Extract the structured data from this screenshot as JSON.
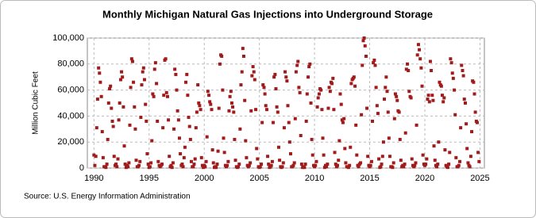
{
  "chart_data": {
    "type": "scatter",
    "title": "Monthly Michigan Natural Gas Injections into Underground Storage",
    "y_label": "Million Cubic Feet",
    "source": "Source: U.S. Energy Information Administration",
    "xlim": [
      1989.4,
      2025.4
    ],
    "xticks": [
      1990,
      1995,
      2000,
      2005,
      2010,
      2015,
      2020,
      2025
    ],
    "ylim": [
      0,
      100000
    ],
    "yticks": [
      0,
      {
        "value": 20000,
        "label": "20,000"
      },
      {
        "value": 40000,
        "label": "40,000"
      },
      {
        "value": 60000,
        "label": "60,000"
      },
      {
        "value": 80000,
        "label": "80,000"
      },
      {
        "value": 100000,
        "label": "100,000"
      }
    ],
    "grid": true,
    "color": "#a01c1c",
    "x": [
      1990,
      1990.08,
      1990.17,
      1990.25,
      1990.33,
      1990.42,
      1990.5,
      1990.58,
      1990.67,
      1990.75,
      1990.83,
      1990.92,
      1991,
      1991.08,
      1991.17,
      1991.25,
      1991.33,
      1991.42,
      1991.5,
      1991.58,
      1991.67,
      1991.75,
      1991.83,
      1991.92,
      1992,
      1992.08,
      1992.17,
      1992.25,
      1992.33,
      1992.42,
      1992.5,
      1992.58,
      1992.67,
      1992.75,
      1992.83,
      1992.92,
      1993,
      1993.08,
      1993.17,
      1993.25,
      1993.33,
      1993.42,
      1993.5,
      1993.58,
      1993.67,
      1993.75,
      1993.83,
      1993.92,
      1994,
      1994.08,
      1994.17,
      1994.25,
      1994.33,
      1994.42,
      1994.5,
      1994.58,
      1994.67,
      1994.75,
      1994.83,
      1994.92,
      1995,
      1995.08,
      1995.17,
      1995.25,
      1995.33,
      1995.42,
      1995.5,
      1995.58,
      1995.67,
      1995.75,
      1995.83,
      1995.92,
      1996,
      1996.08,
      1996.17,
      1996.25,
      1996.33,
      1996.42,
      1996.5,
      1996.58,
      1996.67,
      1996.75,
      1996.83,
      1996.92,
      1997,
      1997.08,
      1997.17,
      1997.25,
      1997.33,
      1997.42,
      1997.5,
      1997.58,
      1997.67,
      1997.75,
      1997.83,
      1997.92,
      1998,
      1998.08,
      1998.17,
      1998.25,
      1998.33,
      1998.42,
      1998.5,
      1998.58,
      1998.67,
      1998.75,
      1998.83,
      1998.92,
      1999,
      1999.08,
      1999.17,
      1999.25,
      1999.33,
      1999.42,
      1999.5,
      1999.58,
      1999.67,
      1999.75,
      1999.83,
      1999.92,
      2000,
      2000.08,
      2000.17,
      2000.25,
      2000.33,
      2000.42,
      2000.5,
      2000.58,
      2000.67,
      2000.75,
      2000.83,
      2000.92,
      2001,
      2001.08,
      2001.17,
      2001.25,
      2001.33,
      2001.42,
      2001.5,
      2001.58,
      2001.67,
      2001.75,
      2001.83,
      2001.92,
      2002,
      2002.08,
      2002.17,
      2002.25,
      2002.33,
      2002.42,
      2002.5,
      2002.58,
      2002.67,
      2002.75,
      2002.83,
      2002.92,
      2003,
      2003.08,
      2003.17,
      2003.25,
      2003.33,
      2003.42,
      2003.5,
      2003.58,
      2003.67,
      2003.75,
      2003.83,
      2003.92,
      2004,
      2004.08,
      2004.17,
      2004.25,
      2004.33,
      2004.42,
      2004.5,
      2004.58,
      2004.67,
      2004.75,
      2004.83,
      2004.92,
      2005,
      2005.08,
      2005.17,
      2005.25,
      2005.33,
      2005.42,
      2005.5,
      2005.58,
      2005.67,
      2005.75,
      2005.83,
      2005.92,
      2006,
      2006.08,
      2006.17,
      2006.25,
      2006.33,
      2006.42,
      2006.5,
      2006.58,
      2006.67,
      2006.75,
      2006.83,
      2006.92,
      2007,
      2007.08,
      2007.17,
      2007.25,
      2007.33,
      2007.42,
      2007.5,
      2007.58,
      2007.67,
      2007.75,
      2007.83,
      2007.92,
      2008,
      2008.08,
      2008.17,
      2008.25,
      2008.33,
      2008.42,
      2008.5,
      2008.58,
      2008.67,
      2008.75,
      2008.83,
      2008.92,
      2009,
      2009.08,
      2009.17,
      2009.25,
      2009.33,
      2009.42,
      2009.5,
      2009.58,
      2009.67,
      2009.75,
      2009.83,
      2009.92,
      2010,
      2010.08,
      2010.17,
      2010.25,
      2010.33,
      2010.42,
      2010.5,
      2010.58,
      2010.67,
      2010.75,
      2010.83,
      2010.92,
      2011,
      2011.08,
      2011.17,
      2011.25,
      2011.33,
      2011.42,
      2011.5,
      2011.58,
      2011.67,
      2011.75,
      2011.83,
      2011.92,
      2012,
      2012.08,
      2012.17,
      2012.25,
      2012.33,
      2012.42,
      2012.5,
      2012.58,
      2012.67,
      2012.75,
      2012.83,
      2012.92,
      2013,
      2013.08,
      2013.17,
      2013.25,
      2013.33,
      2013.42,
      2013.5,
      2013.58,
      2013.67,
      2013.75,
      2013.83,
      2013.92,
      2014,
      2014.08,
      2014.17,
      2014.25,
      2014.33,
      2014.42,
      2014.5,
      2014.58,
      2014.67,
      2014.75,
      2014.83,
      2014.92,
      2015,
      2015.08,
      2015.17,
      2015.25,
      2015.33,
      2015.42,
      2015.5,
      2015.58,
      2015.67,
      2015.75,
      2015.83,
      2015.92,
      2016,
      2016.08,
      2016.17,
      2016.25,
      2016.33,
      2016.42,
      2016.5,
      2016.58,
      2016.67,
      2016.75,
      2016.83,
      2016.92,
      2017,
      2017.08,
      2017.17,
      2017.25,
      2017.33,
      2017.42,
      2017.5,
      2017.58,
      2017.67,
      2017.75,
      2017.83,
      2017.92,
      2018,
      2018.08,
      2018.17,
      2018.25,
      2018.33,
      2018.42,
      2018.5,
      2018.58,
      2018.67,
      2018.75,
      2018.83,
      2018.92,
      2019,
      2019.08,
      2019.17,
      2019.25,
      2019.33,
      2019.42,
      2019.5,
      2019.58,
      2019.67,
      2019.75,
      2019.83,
      2019.92,
      2020,
      2020.08,
      2020.17,
      2020.25,
      2020.33,
      2020.42,
      2020.5,
      2020.58,
      2020.67,
      2020.75,
      2020.83,
      2020.92,
      2021,
      2021.08,
      2021.17,
      2021.25,
      2021.33,
      2021.42,
      2021.5,
      2021.58,
      2021.67,
      2021.75,
      2021.83,
      2021.92,
      2022,
      2022.08,
      2022.17,
      2022.25,
      2022.33,
      2022.42,
      2022.5,
      2022.58,
      2022.67,
      2022.75,
      2022.83,
      2022.92,
      2023,
      2023.08,
      2023.17,
      2023.25,
      2023.33,
      2023.42,
      2023.5,
      2023.58,
      2023.67,
      2023.75,
      2023.83,
      2023.92,
      2024,
      2024.08,
      2024.17,
      2024.25,
      2024.33,
      2024.42,
      2024.5,
      2024.58,
      2024.67,
      2024.75,
      2024.83,
      2024.92
    ],
    "values": [
      10000,
      2000,
      9000,
      31000,
      53000,
      77000,
      73000,
      66000,
      55000,
      28000,
      8000,
      1000,
      1000,
      500,
      3000,
      22000,
      50000,
      61000,
      63000,
      46000,
      36000,
      32000,
      9000,
      2000,
      3000,
      1000,
      7000,
      37000,
      50000,
      68000,
      74000,
      70000,
      47000,
      17000,
      3000,
      500,
      2000,
      1000,
      4000,
      33000,
      62000,
      84000,
      82000,
      66000,
      47000,
      30000,
      6000,
      1000,
      1000,
      2000,
      5000,
      39000,
      64000,
      74000,
      77000,
      68000,
      49000,
      36000,
      11000,
      3000,
      500,
      1000,
      4000,
      21000,
      57000,
      55000,
      76000,
      81000,
      65000,
      36000,
      5000,
      2000,
      1000,
      2000,
      3000,
      31000,
      56000,
      83000,
      84000,
      58000,
      55000,
      37000,
      9000,
      1000,
      2000,
      500,
      4000,
      30000,
      76000,
      72000,
      60000,
      44000,
      37000,
      23000,
      11000,
      2000,
      3000,
      1000,
      8000,
      16000,
      66000,
      72000,
      56000,
      39000,
      32000,
      22000,
      5000,
      1000,
      1000,
      3000,
      7000,
      31000,
      43000,
      64000,
      50000,
      48000,
      45000,
      8000,
      2000,
      500,
      2000,
      1000,
      5000,
      24000,
      59000,
      56000,
      51000,
      49000,
      45000,
      14000,
      4000,
      500,
      1000,
      500,
      3000,
      13000,
      46000,
      80000,
      87000,
      86000,
      60000,
      23000,
      12000,
      2000,
      1000,
      2000,
      5000,
      44000,
      55000,
      59000,
      50000,
      47000,
      43000,
      22000,
      6000,
      1000,
      500,
      1000,
      3000,
      30000,
      64000,
      74000,
      92000,
      86000,
      52000,
      21000,
      8000,
      2000,
      1000,
      2000,
      4000,
      44000,
      71000,
      78000,
      74000,
      68000,
      45000,
      15000,
      7000,
      1000,
      500,
      1000,
      3000,
      35000,
      64000,
      62000,
      57000,
      48000,
      45000,
      9000,
      3000,
      500,
      1000,
      2000,
      5000,
      35000,
      70000,
      72000,
      61000,
      47000,
      43000,
      16000,
      6000,
      1000,
      500,
      1000,
      4000,
      31000,
      74000,
      70000,
      67000,
      48000,
      35000,
      20000,
      11000,
      1000,
      1000,
      2000,
      4000,
      38000,
      74000,
      79000,
      82000,
      62000,
      58000,
      25000,
      3000,
      500,
      1000,
      500,
      3000,
      36000,
      57000,
      70000,
      78000,
      80000,
      50000,
      22000,
      10000,
      2000,
      1000,
      2000,
      5000,
      47000,
      54000,
      57000,
      61000,
      60000,
      45000,
      23000,
      10000,
      500,
      2000,
      1000,
      3000,
      46000,
      62000,
      59000,
      66000,
      65000,
      69000,
      45000,
      12000,
      3000,
      1000,
      2000,
      6000,
      21000,
      57000,
      49000,
      37000,
      35000,
      38000,
      15000,
      4000,
      1000,
      1000,
      500,
      2000,
      16000,
      65000,
      68000,
      69000,
      70000,
      63000,
      33000,
      10000,
      2000,
      1000,
      3000,
      4000,
      41000,
      79000,
      98000,
      100000,
      94000,
      86000,
      46000,
      9000,
      2000,
      1000,
      2000,
      5000,
      36000,
      81000,
      83000,
      79000,
      62000,
      48000,
      42000,
      7000,
      500,
      1000,
      3000,
      9000,
      20000,
      53000,
      62000,
      70000,
      59000,
      43000,
      23000,
      9000,
      1000,
      1000,
      500,
      4000,
      38000,
      57000,
      55000,
      52000,
      44000,
      43000,
      22000,
      6000,
      1000,
      2000,
      1000,
      3000,
      27000,
      76000,
      80000,
      75000,
      59000,
      55000,
      54000,
      7000,
      2000,
      1000,
      2000,
      4000,
      33000,
      87000,
      95000,
      91000,
      84000,
      77000,
      63000,
      10000,
      3000,
      2000,
      3000,
      7000,
      53000,
      56000,
      51000,
      82000,
      75000,
      56000,
      52000,
      17000,
      6000,
      2000,
      1000,
      3000,
      20000,
      66000,
      64000,
      63000,
      56000,
      51000,
      54000,
      14000,
      2000,
      1000,
      500,
      3000,
      12000,
      84000,
      81000,
      73000,
      69000,
      60000,
      41000,
      8000,
      1000,
      1000,
      2000,
      5000,
      31000,
      79000,
      75000,
      71000,
      53000,
      50000,
      34000,
      15000,
      4000,
      2000,
      1000,
      9000,
      28000,
      67000,
      66000,
      57000,
      43000,
      36000,
      35000,
      12000,
      5000
    ]
  }
}
